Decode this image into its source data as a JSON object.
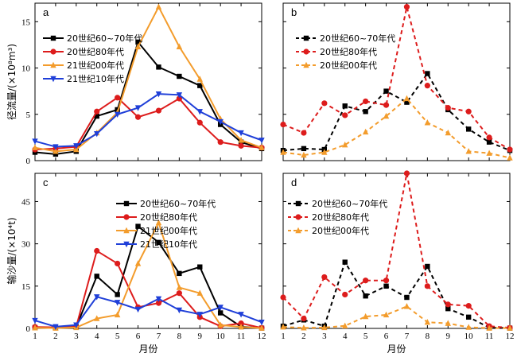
{
  "chart_data": [
    {
      "type": "line",
      "panel_label": "a",
      "ylabel": "径流量/(×10⁸m³)",
      "xlabel": "",
      "x": [
        1,
        2,
        3,
        4,
        5,
        6,
        7,
        8,
        9,
        10,
        11,
        12
      ],
      "xlim": [
        1,
        12
      ],
      "ylim": [
        0,
        17
      ],
      "yticks": [
        0,
        5,
        10,
        15
      ],
      "xticks": [],
      "legend_position": "upper-left",
      "series": [
        {
          "name": "20世纪60~70年代",
          "color": "#000000",
          "marker": "square",
          "dashed": false,
          "values": [
            0.9,
            0.7,
            1.0,
            4.8,
            5.5,
            12.8,
            10.1,
            9.1,
            8.1,
            3.9,
            2.0,
            1.3
          ]
        },
        {
          "name": "20世纪80年代",
          "color": "#dd1c1c",
          "marker": "circle",
          "dashed": false,
          "values": [
            1.2,
            1.3,
            1.5,
            5.3,
            6.8,
            4.7,
            5.4,
            6.7,
            4.1,
            2.0,
            1.6,
            1.4
          ]
        },
        {
          "name": "21世纪00年代",
          "color": "#f39c2c",
          "marker": "triangle-up",
          "dashed": false,
          "values": [
            1.4,
            1.0,
            1.2,
            3.0,
            5.2,
            12.3,
            16.6,
            12.3,
            8.8,
            4.5,
            2.2,
            1.4
          ]
        },
        {
          "name": "21世纪10年代",
          "color": "#1f3fd8",
          "marker": "triangle-down",
          "dashed": false,
          "values": [
            2.1,
            1.5,
            1.6,
            2.9,
            5.0,
            5.7,
            7.2,
            7.1,
            5.3,
            4.2,
            3.0,
            2.2
          ]
        }
      ]
    },
    {
      "type": "line",
      "panel_label": "b",
      "ylabel": "",
      "xlabel": "",
      "x": [
        1,
        2,
        3,
        4,
        5,
        6,
        7,
        8,
        9,
        10,
        11,
        12
      ],
      "xlim": [
        1,
        12
      ],
      "ylim": [
        0,
        17
      ],
      "yticks": [],
      "xticks": [],
      "legend_position": "upper-left",
      "series": [
        {
          "name": "20世纪60~70年代",
          "color": "#000000",
          "marker": "square",
          "dashed": true,
          "values": [
            1.1,
            1.3,
            1.2,
            5.9,
            5.3,
            7.5,
            6.3,
            9.4,
            5.5,
            3.4,
            2.0,
            1.1
          ]
        },
        {
          "name": "20世纪80年代",
          "color": "#dd1c1c",
          "marker": "circle",
          "dashed": true,
          "values": [
            3.9,
            3.0,
            6.2,
            4.9,
            6.4,
            6.0,
            16.6,
            8.1,
            5.7,
            5.3,
            2.5,
            1.2
          ]
        },
        {
          "name": "20世纪00年代",
          "color": "#f39c2c",
          "marker": "triangle-up",
          "dashed": true,
          "values": [
            0.9,
            0.6,
            0.9,
            1.7,
            3.1,
            4.8,
            6.7,
            4.1,
            3.0,
            1.0,
            0.8,
            0.3
          ]
        }
      ]
    },
    {
      "type": "line",
      "panel_label": "c",
      "ylabel": "输沙量/(×10⁴t)",
      "xlabel": "月份",
      "x": [
        1,
        2,
        3,
        4,
        5,
        6,
        7,
        8,
        9,
        10,
        11,
        12
      ],
      "xlim": [
        1,
        12
      ],
      "ylim": [
        0,
        55
      ],
      "yticks": [
        0,
        15,
        30,
        45
      ],
      "xticks": [
        1,
        2,
        3,
        4,
        5,
        6,
        7,
        8,
        9,
        10,
        11,
        12
      ],
      "legend_position": "upper-right",
      "series": [
        {
          "name": "20世纪60~70年代",
          "color": "#000000",
          "marker": "square",
          "dashed": false,
          "values": [
            0.3,
            0.2,
            0.5,
            18.5,
            12.0,
            36.2,
            30.5,
            19.5,
            21.8,
            5.5,
            0.6,
            0.1
          ]
        },
        {
          "name": "20世纪80年代",
          "color": "#dd1c1c",
          "marker": "circle",
          "dashed": false,
          "values": [
            0.5,
            0.4,
            0.6,
            27.5,
            23.0,
            7.5,
            9.0,
            12.5,
            4.0,
            0.8,
            1.8,
            0.2
          ]
        },
        {
          "name": "21世纪00年代",
          "color": "#f39c2c",
          "marker": "triangle-up",
          "dashed": false,
          "values": [
            0.2,
            0.1,
            0.3,
            3.5,
            4.8,
            23.0,
            37.5,
            14.5,
            12.5,
            1.2,
            0.5,
            0.1
          ]
        },
        {
          "name": "21世纪10年代",
          "color": "#1f3fd8",
          "marker": "triangle-down",
          "dashed": false,
          "values": [
            2.8,
            0.6,
            1.2,
            11.2,
            9.2,
            6.8,
            10.5,
            6.5,
            5.0,
            7.5,
            5.0,
            2.2
          ]
        }
      ]
    },
    {
      "type": "line",
      "panel_label": "d",
      "ylabel": "",
      "xlabel": "月份",
      "x": [
        1,
        2,
        3,
        4,
        5,
        6,
        7,
        8,
        9,
        10,
        11,
        12
      ],
      "xlim": [
        1,
        12
      ],
      "ylim": [
        0,
        55
      ],
      "yticks": [],
      "xticks": [
        1,
        2,
        3,
        4,
        5,
        6,
        7,
        8,
        9,
        10,
        11,
        12
      ],
      "legend_position": "upper-left",
      "series": [
        {
          "name": "20世纪60~70年代",
          "color": "#000000",
          "marker": "square",
          "dashed": true,
          "values": [
            0.8,
            3.0,
            0.8,
            23.5,
            11.5,
            15.0,
            11.0,
            22.0,
            7.0,
            4.0,
            0.3,
            0.1
          ]
        },
        {
          "name": "20世纪80年代",
          "color": "#dd1c1c",
          "marker": "circle",
          "dashed": true,
          "values": [
            11.0,
            3.5,
            18.2,
            12.0,
            17.0,
            17.0,
            55.0,
            15.0,
            8.5,
            8.0,
            0.8,
            0.2
          ]
        },
        {
          "name": "20世纪00年代",
          "color": "#f39c2c",
          "marker": "triangle-up",
          "dashed": true,
          "values": [
            0.5,
            0.2,
            0.3,
            0.9,
            4.2,
            4.8,
            7.8,
            2.2,
            1.8,
            0.4,
            0.1,
            0.1
          ]
        }
      ]
    }
  ]
}
